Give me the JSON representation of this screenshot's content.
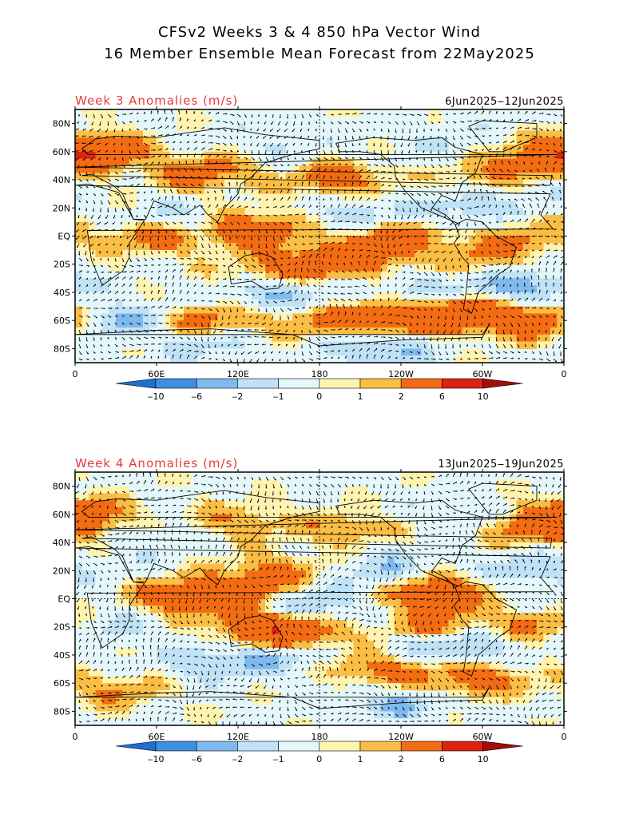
{
  "figure": {
    "title_line1": "CFSv2 Weeks 3 & 4 850 hPa Vector Wind",
    "title_line2": "16 Member Ensemble Mean Forecast from 22May2025"
  },
  "panels": [
    {
      "title": "Week 3 Anomalies (m/s)",
      "date_range": "6Jun2025‒12Jun2025"
    },
    {
      "title": "Week 4 Anomalies (m/s)",
      "date_range": "13Jun2025‒19Jun2025"
    }
  ],
  "map_axes": {
    "lat_ticks": [
      "80N",
      "60N",
      "40N",
      "20N",
      "EQ",
      "20S",
      "40S",
      "60S",
      "80S"
    ],
    "lon_ticks": [
      "0",
      "60E",
      "120E",
      "180",
      "120W",
      "60W",
      "0"
    ]
  },
  "colorbar": {
    "tick_labels": [
      "‒10",
      "‒6",
      "‒2",
      "‒1",
      "0",
      "1",
      "2",
      "6",
      "10"
    ],
    "colors": [
      "#1f6ed0",
      "#3d8fe3",
      "#7fb9ee",
      "#bfe2f7",
      "#e4f7fb",
      "#fff3b0",
      "#fbbe45",
      "#f36c13",
      "#dd2211",
      "#a60d08"
    ]
  },
  "chart_data": [
    {
      "type": "heatmap",
      "title": "Week 3 Anomalies (m/s)",
      "x_range": [
        0,
        360
      ],
      "y_range": [
        -90,
        90
      ],
      "features": [
        {
          "lon": 130,
          "lat": 5,
          "val": 4
        },
        {
          "lon": 60,
          "lat": 0,
          "val": 3
        },
        {
          "lon": 165,
          "lat": -22,
          "val": 3
        },
        {
          "lon": 210,
          "lat": -15,
          "val": 3
        },
        {
          "lon": 230,
          "lat": -60,
          "val": 4
        },
        {
          "lon": 280,
          "lat": -55,
          "val": 5
        },
        {
          "lon": 95,
          "lat": -62,
          "val": 3
        },
        {
          "lon": 170,
          "lat": -60,
          "val": 2
        },
        {
          "lon": 340,
          "lat": -60,
          "val": 4
        },
        {
          "lon": 15,
          "lat": 60,
          "val": 4
        },
        {
          "lon": 95,
          "lat": 45,
          "val": 3
        },
        {
          "lon": 195,
          "lat": 40,
          "val": 3
        },
        {
          "lon": 310,
          "lat": 40,
          "val": 3
        },
        {
          "lon": 350,
          "lat": 55,
          "val": 3
        },
        {
          "lon": 235,
          "lat": 0,
          "val": 3
        },
        {
          "lon": 330,
          "lat": 0,
          "val": 2
        },
        {
          "lon": 300,
          "lat": -15,
          "val": 2
        },
        {
          "lon": 130,
          "lat": -28,
          "val": 1
        },
        {
          "lon": 30,
          "lat": -60,
          "val": -3
        },
        {
          "lon": 150,
          "lat": -40,
          "val": -3
        },
        {
          "lon": 330,
          "lat": -35,
          "val": -3
        },
        {
          "lon": 260,
          "lat": -40,
          "val": -2
        },
        {
          "lon": 100,
          "lat": -75,
          "val": -2
        },
        {
          "lon": 225,
          "lat": -77,
          "val": -3
        },
        {
          "lon": 80,
          "lat": 10,
          "val": -2
        },
        {
          "lon": 210,
          "lat": 15,
          "val": -2
        },
        {
          "lon": 290,
          "lat": 20,
          "val": -2
        },
        {
          "lon": 325,
          "lat": 35,
          "val": -2
        },
        {
          "lon": 150,
          "lat": 65,
          "val": -1
        },
        {
          "lon": 270,
          "lat": 70,
          "val": -1
        }
      ]
    },
    {
      "type": "heatmap",
      "title": "Week 4 Anomalies (m/s)",
      "x_range": [
        0,
        360
      ],
      "y_range": [
        -90,
        90
      ],
      "features": [
        {
          "lon": 120,
          "lat": 5,
          "val": 4
        },
        {
          "lon": 75,
          "lat": 0,
          "val": 3
        },
        {
          "lon": 140,
          "lat": -20,
          "val": 4
        },
        {
          "lon": 165,
          "lat": -25,
          "val": 3
        },
        {
          "lon": 265,
          "lat": 5,
          "val": 4
        },
        {
          "lon": 265,
          "lat": -20,
          "val": 3
        },
        {
          "lon": 340,
          "lat": -20,
          "val": 3
        },
        {
          "lon": 225,
          "lat": -50,
          "val": 3
        },
        {
          "lon": 295,
          "lat": -57,
          "val": 3
        },
        {
          "lon": 30,
          "lat": -65,
          "val": 2
        },
        {
          "lon": 5,
          "lat": 60,
          "val": 3
        },
        {
          "lon": 120,
          "lat": 55,
          "val": 2
        },
        {
          "lon": 340,
          "lat": 50,
          "val": 3
        },
        {
          "lon": 150,
          "lat": 20,
          "val": 2
        },
        {
          "lon": 170,
          "lat": -5,
          "val": -3
        },
        {
          "lon": 260,
          "lat": -35,
          "val": -2
        },
        {
          "lon": 100,
          "lat": -45,
          "val": -2
        },
        {
          "lon": 155,
          "lat": -40,
          "val": -2
        },
        {
          "lon": 20,
          "lat": -20,
          "val": -2
        },
        {
          "lon": 230,
          "lat": 20,
          "val": -2
        },
        {
          "lon": 335,
          "lat": 20,
          "val": -2
        },
        {
          "lon": 300,
          "lat": -30,
          "val": -2
        },
        {
          "lon": 235,
          "lat": -75,
          "val": -2
        },
        {
          "lon": 60,
          "lat": 40,
          "val": -1
        },
        {
          "lon": 280,
          "lat": 60,
          "val": -1
        },
        {
          "lon": 200,
          "lat": 50,
          "val": 2
        }
      ]
    }
  ]
}
